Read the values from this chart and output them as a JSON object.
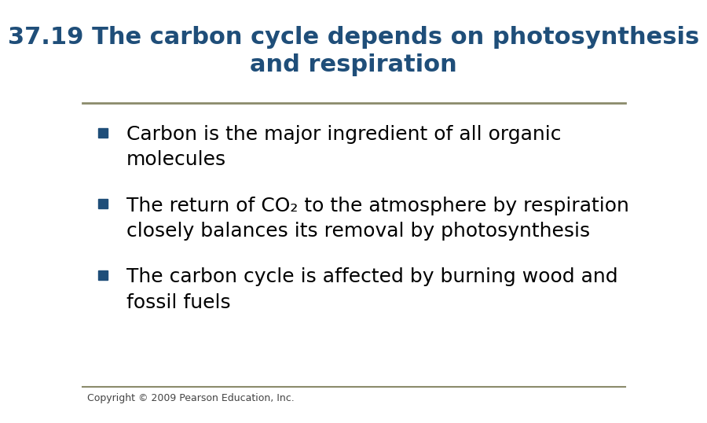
{
  "title_line1": "37.19 The carbon cycle depends on photosynthesis",
  "title_line2": "and respiration",
  "title_color": "#1F4E79",
  "title_fontsize": 22,
  "title_bold": true,
  "separator_color": "#8B8B6B",
  "bullet_color": "#1F4E79",
  "text_color": "#000000",
  "bullet_fontsize": 18,
  "copyright_text": "Copyright © 2009 Pearson Education, Inc.",
  "copyright_fontsize": 9,
  "background_color": "#FFFFFF",
  "bottom_line_color": "#8B8B6B",
  "bullets": [
    {
      "line1": "Carbon is the major ingredient of all organic",
      "line2": "molecules",
      "has_subscript": false
    },
    {
      "line1": "The return of CO₂ to the atmosphere by respiration",
      "line2": "closely balances its removal by photosynthesis",
      "has_subscript": false
    },
    {
      "line1": "The carbon cycle is affected by burning wood and",
      "line2": "fossil fuels",
      "has_subscript": false
    }
  ]
}
